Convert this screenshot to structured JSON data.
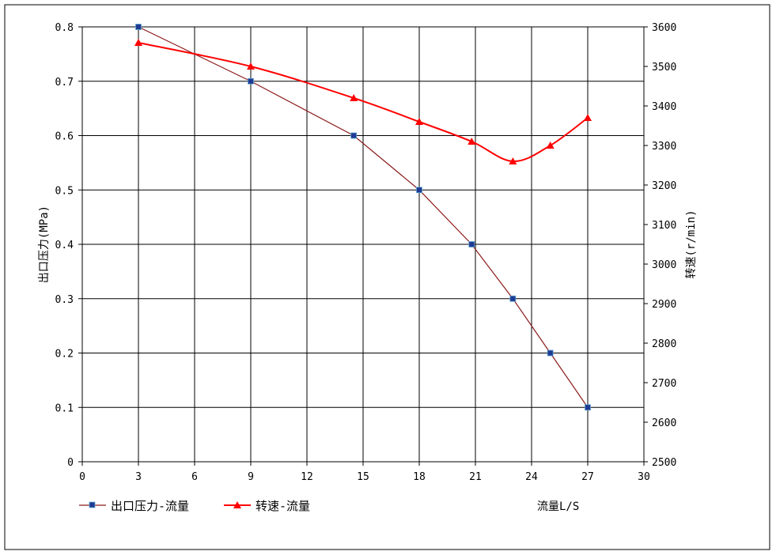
{
  "chart_data": {
    "type": "line",
    "title": "",
    "xlabel": "流量L/S",
    "ylabel": "出口压力(MPa)",
    "y2label": "转速(r/min)",
    "xlim": [
      0,
      30
    ],
    "ylim": [
      0,
      0.8
    ],
    "y2lim": [
      2500,
      3600
    ],
    "x_ticks": [
      "0",
      "3",
      "6",
      "9",
      "12",
      "15",
      "18",
      "21",
      "24",
      "27",
      "30"
    ],
    "y_ticks": [
      "0",
      "0.1",
      "0.2",
      "0.3",
      "0.4",
      "0.5",
      "0.6",
      "0.7",
      "0.8"
    ],
    "y2_ticks": [
      "2500",
      "2600",
      "2700",
      "2800",
      "2900",
      "3000",
      "3100",
      "3200",
      "3300",
      "3400",
      "3500",
      "3600"
    ],
    "grid": true,
    "legend_position": "bottom-left",
    "series": [
      {
        "name": "出口压力-流量",
        "axis": "left",
        "color": "#8B1A1A",
        "marker_color": "#1F3A93",
        "marker": "square",
        "x": [
          3,
          9,
          14.5,
          18,
          20.8,
          23,
          25,
          27
        ],
        "y": [
          0.8,
          0.7,
          0.6,
          0.5,
          0.4,
          0.3,
          0.2,
          0.1
        ]
      },
      {
        "name": "转速-流量",
        "axis": "right",
        "color": "#FF0000",
        "marker_color": "#FF0000",
        "marker": "triangle",
        "x": [
          3,
          9,
          14.5,
          18,
          20.8,
          23,
          25,
          27
        ],
        "y": [
          3560,
          3500,
          3420,
          3360,
          3310,
          3260,
          3300,
          3370
        ]
      }
    ]
  }
}
